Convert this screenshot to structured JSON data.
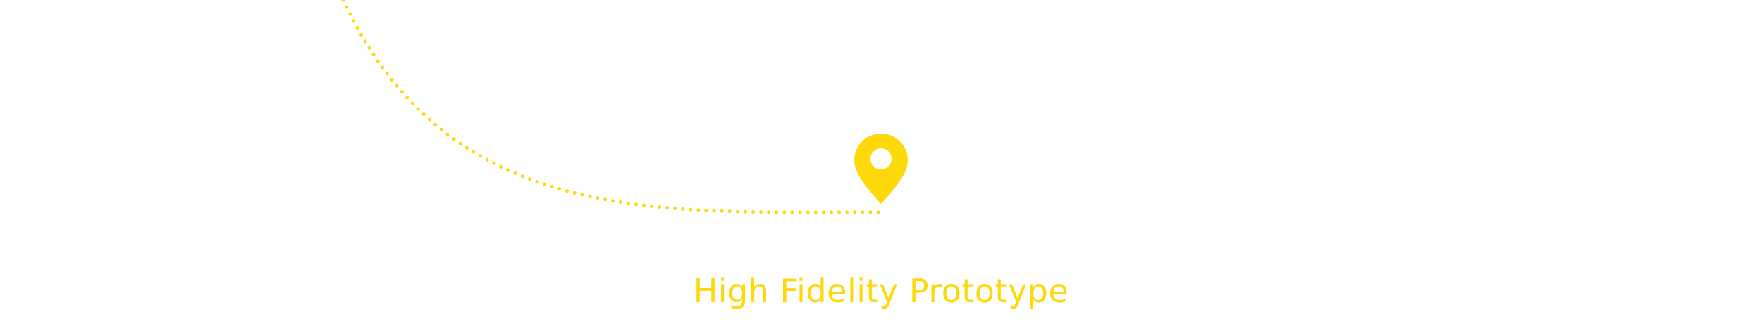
{
  "caption": "High Fidelity Prototype",
  "colors": {
    "accent": "#fdd90c",
    "background": "#ffffff"
  },
  "icons": {
    "marker": "map-pin-icon"
  }
}
